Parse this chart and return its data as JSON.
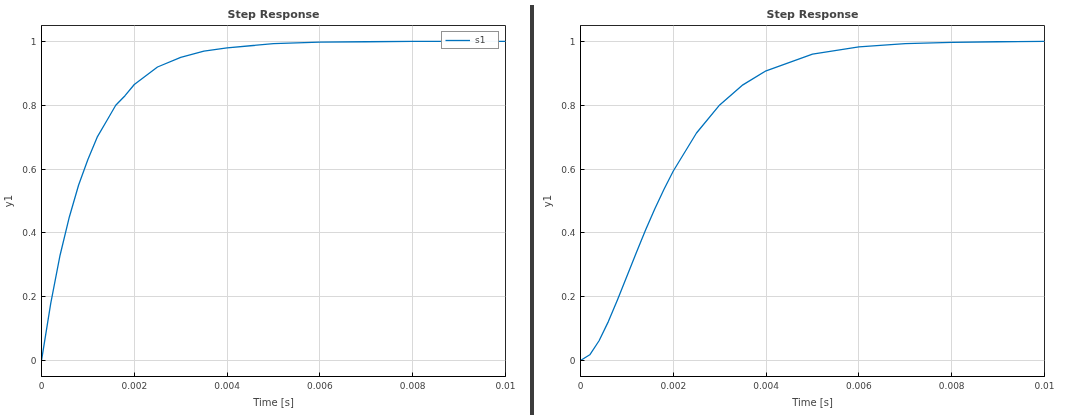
{
  "chart_data": [
    {
      "type": "line",
      "title": "Step Response",
      "xlabel": "Time [s]",
      "ylabel": "y1",
      "x": [
        0,
        0.0002,
        0.0004,
        0.0006,
        0.0008,
        0.001,
        0.0012,
        0.0014,
        0.0016,
        0.0018,
        0.002,
        0.0025,
        0.003,
        0.0035,
        0.004,
        0.005,
        0.006,
        0.007,
        0.008,
        0.009,
        0.01
      ],
      "series": [
        {
          "name": "s1",
          "color": "#0072bd",
          "values": [
            0,
            0.18,
            0.33,
            0.45,
            0.55,
            0.63,
            0.7,
            0.75,
            0.8,
            0.83,
            0.865,
            0.92,
            0.95,
            0.97,
            0.98,
            0.993,
            0.998,
            0.999,
            1,
            1,
            1
          ]
        }
      ],
      "xlim": [
        0,
        0.01
      ],
      "ylim": [
        -0.05,
        1.05
      ],
      "xticks": [
        0,
        0.002,
        0.004,
        0.006,
        0.008,
        0.01
      ],
      "yticks": [
        0,
        0.2,
        0.4,
        0.6,
        0.8,
        1
      ],
      "grid": true,
      "legend": "top right",
      "marker": "none",
      "line_style": "solid"
    },
    {
      "type": "line",
      "title": "Step Response",
      "xlabel": "Time [s]",
      "ylabel": "y1",
      "x": [
        0,
        0.0002,
        0.0004,
        0.0006,
        0.0008,
        0.001,
        0.0012,
        0.0014,
        0.0016,
        0.0018,
        0.002,
        0.0025,
        0.003,
        0.0035,
        0.004,
        0.005,
        0.006,
        0.007,
        0.008,
        0.009,
        0.01
      ],
      "series": [
        {
          "color": "#0072bd",
          "values": [
            0,
            0.018,
            0.062,
            0.122,
            0.191,
            0.264,
            0.337,
            0.408,
            0.475,
            0.537,
            0.594,
            0.713,
            0.801,
            0.864,
            0.908,
            0.96,
            0.983,
            0.993,
            0.997,
            0.999,
            1
          ]
        }
      ],
      "xlim": [
        0,
        0.01
      ],
      "ylim": [
        -0.05,
        1.05
      ],
      "xticks": [
        0,
        0.002,
        0.004,
        0.006,
        0.008,
        0.01
      ],
      "yticks": [
        0,
        0.2,
        0.4,
        0.6,
        0.8,
        1
      ],
      "grid": true,
      "marker": "none",
      "line_style": "solid"
    }
  ]
}
